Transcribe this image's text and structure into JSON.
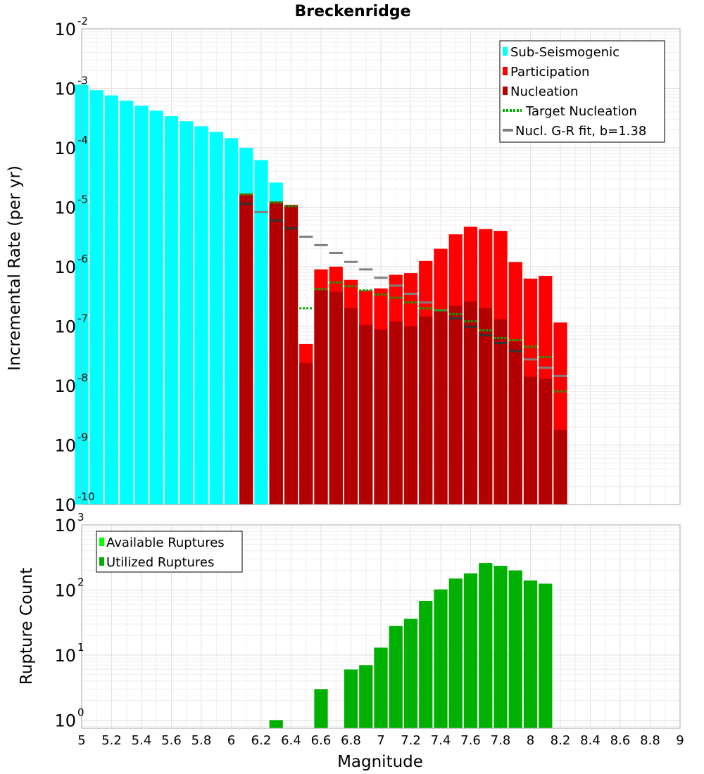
{
  "title": "Breckenridge",
  "colors": {
    "sub_seismogenic": "#00ffff",
    "participation": "#ff0000",
    "nucleation": "#b30000",
    "target_nucleation": "#00b000",
    "gr_fit": "#808080",
    "gr_fit_marker": "#333333",
    "available": "#00ff00",
    "utilized": "#00b000"
  },
  "chart_data": [
    {
      "type": "bar",
      "name": "magnitude-frequency",
      "ylabel": "Incremental Rate (per yr)",
      "xlabel": "",
      "xlim": [
        5,
        9
      ],
      "ylim": [
        1e-10,
        0.01
      ],
      "yscale": "log",
      "grid": true,
      "legend_placement": "top-right",
      "y_ticks": [
        {
          "base": "10",
          "exp": "-10",
          "value": 1e-10
        },
        {
          "base": "10",
          "exp": "-9",
          "value": 1e-09
        },
        {
          "base": "10",
          "exp": "-8",
          "value": 1e-08
        },
        {
          "base": "10",
          "exp": "-7",
          "value": 1e-07
        },
        {
          "base": "10",
          "exp": "-6",
          "value": 1e-06
        },
        {
          "base": "10",
          "exp": "-5",
          "value": 1e-05
        },
        {
          "base": "10",
          "exp": "-4",
          "value": 0.0001
        },
        {
          "base": "10",
          "exp": "-3",
          "value": 0.001
        },
        {
          "base": "10",
          "exp": "-2",
          "value": 0.01
        }
      ],
      "legend": [
        {
          "key": "sub",
          "label": "Sub-Seismogenic",
          "style": "bar"
        },
        {
          "key": "part",
          "label": "Participation",
          "style": "bar"
        },
        {
          "key": "nucl",
          "label": "Nucleation",
          "style": "bar"
        },
        {
          "key": "target",
          "label": "Target Nucleation",
          "style": "dotted"
        },
        {
          "key": "gr",
          "label": "Nucl. G-R fit, b=1.38",
          "style": "line"
        }
      ],
      "sub_seismogenic": {
        "x": [
          5.0,
          5.1,
          5.2,
          5.3,
          5.4,
          5.5,
          5.6,
          5.7,
          5.8,
          5.9,
          6.0,
          6.1,
          6.2,
          6.3
        ],
        "y": [
          0.00115,
          0.00093,
          0.00076,
          0.00062,
          0.00051,
          0.00042,
          0.00034,
          0.00028,
          0.00023,
          0.000185,
          0.000145,
          0.0001,
          6.2e-05,
          2.6e-05
        ]
      },
      "participation": {
        "x": [
          6.1,
          6.3,
          6.4,
          6.5,
          6.6,
          6.7,
          6.8,
          6.9,
          7.0,
          7.1,
          7.2,
          7.3,
          7.4,
          7.5,
          7.6,
          7.7,
          7.8,
          7.9,
          8.0,
          8.1,
          8.2
        ],
        "y": [
          1.7e-05,
          1.25e-05,
          1.1e-05,
          5e-08,
          9e-07,
          1e-06,
          6e-07,
          4e-07,
          4.3e-07,
          7.3e-07,
          7.8e-07,
          1.25e-06,
          2e-06,
          3.5e-06,
          4.7e-06,
          4.3e-06,
          4e-06,
          1.2e-06,
          6.3e-07,
          7e-07,
          1.15e-07
        ]
      },
      "nucleation": {
        "x": [
          6.1,
          6.3,
          6.4,
          6.5,
          6.6,
          6.7,
          6.8,
          6.9,
          7.0,
          7.1,
          7.2,
          7.3,
          7.4,
          7.5,
          7.6,
          7.7,
          7.8,
          7.9,
          8.0,
          8.1,
          8.2
        ],
        "y": [
          1.6e-05,
          1.2e-05,
          1.05e-05,
          2.4e-08,
          4e-07,
          3.8e-07,
          2e-07,
          1.05e-07,
          8.8e-08,
          1.2e-07,
          1e-07,
          1.45e-07,
          1.8e-07,
          2.2e-07,
          2.6e-07,
          2e-07,
          1.3e-07,
          5.5e-08,
          1.4e-08,
          1.3e-08,
          1.8e-09
        ]
      },
      "target_nucleation": {
        "x": [
          6.1,
          6.3,
          6.4,
          6.5,
          6.6,
          6.7,
          6.8,
          6.9,
          7.0,
          7.1,
          7.2,
          7.3,
          7.4,
          7.5,
          7.6,
          7.7,
          7.8,
          7.9,
          8.0,
          8.1,
          8.2
        ],
        "y": [
          1.65e-05,
          1.2e-05,
          1.05e-05,
          2e-07,
          4.2e-07,
          5.4e-07,
          4.7e-07,
          4e-07,
          3.4e-07,
          3e-07,
          2.5e-07,
          2e-07,
          1.85e-07,
          1.6e-07,
          1.2e-07,
          8.5e-08,
          6.3e-08,
          5.8e-08,
          4.5e-08,
          3e-08,
          8e-09
        ]
      },
      "gr_fit": {
        "x": [
          6.1,
          6.2,
          6.3,
          6.4,
          6.5,
          6.6,
          6.7,
          6.8,
          6.9,
          7.0,
          7.1,
          7.2,
          7.3,
          7.4,
          7.5,
          7.6,
          7.7,
          7.8,
          7.9,
          8.0,
          8.1,
          8.2
        ],
        "y": [
          1.15e-05,
          8.3e-06,
          6e-06,
          4.4e-06,
          3.2e-06,
          2.3e-06,
          1.7e-06,
          1.2e-06,
          9e-07,
          6.5e-07,
          4.8e-07,
          3.5e-07,
          2.5e-07,
          1.85e-07,
          1.35e-07,
          9.8e-08,
          7.1e-08,
          5.2e-08,
          3.8e-08,
          2.75e-08,
          2e-08,
          1.45e-08
        ]
      }
    },
    {
      "type": "bar",
      "name": "rupture-count",
      "ylabel": "Rupture Count",
      "xlabel": "Magnitude",
      "xlim": [
        5,
        9
      ],
      "ylim": [
        0.75,
        1000
      ],
      "yscale": "log",
      "grid": true,
      "legend_placement": "top-left",
      "y_ticks": [
        {
          "base": "10",
          "exp": "0",
          "value": 1
        },
        {
          "base": "10",
          "exp": "1",
          "value": 10
        },
        {
          "base": "10",
          "exp": "2",
          "value": 100
        },
        {
          "base": "10",
          "exp": "3",
          "value": 1000
        }
      ],
      "x_ticks": [
        "5",
        "5.2",
        "5.4",
        "5.6",
        "5.8",
        "6",
        "6.2",
        "6.4",
        "6.6",
        "6.8",
        "7",
        "7.2",
        "7.4",
        "7.6",
        "7.8",
        "8",
        "8.2",
        "8.4",
        "8.6",
        "8.8",
        "9"
      ],
      "legend": [
        {
          "key": "available",
          "label": "Available Ruptures",
          "style": "bar"
        },
        {
          "key": "utilized",
          "label": "Utilized Ruptures",
          "style": "bar"
        }
      ],
      "utilized": {
        "x": [
          6.3,
          6.6,
          6.8,
          6.9,
          7.0,
          7.1,
          7.2,
          7.3,
          7.4,
          7.5,
          7.6,
          7.7,
          7.8,
          7.9,
          8.0,
          8.1
        ],
        "y": [
          1,
          3,
          6,
          7,
          13,
          28,
          36,
          68,
          102,
          150,
          180,
          260,
          235,
          200,
          140,
          125
        ]
      }
    }
  ]
}
